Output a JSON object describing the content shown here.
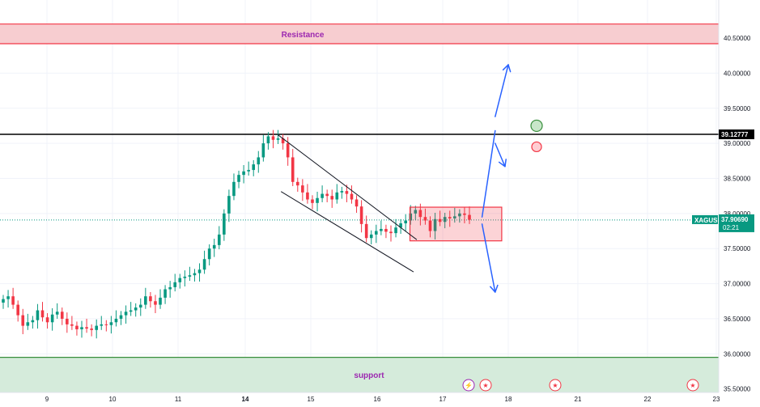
{
  "chart_data": {
    "type": "candlestick",
    "symbol": "XAGUSD",
    "y_ticks": [
      "40.50000",
      "40.00000",
      "39.50000",
      "39.00000",
      "38.50000",
      "38.00000",
      "37.50000",
      "37.00000",
      "36.50000",
      "36.00000",
      "35.50000"
    ],
    "y_tick_values": [
      40.5,
      40.0,
      39.5,
      39.0,
      38.5,
      38.0,
      37.5,
      37.0,
      36.5,
      36.0,
      35.5
    ],
    "x_ticks": [
      {
        "label": "9",
        "bold": false
      },
      {
        "label": "10",
        "bold": false
      },
      {
        "label": "11",
        "bold": false
      },
      {
        "label": "14",
        "bold": true
      },
      {
        "label": "15",
        "bold": false
      },
      {
        "label": "16",
        "bold": false
      },
      {
        "label": "17",
        "bold": false
      },
      {
        "label": "18",
        "bold": false
      },
      {
        "label": "21",
        "bold": false
      },
      {
        "label": "22",
        "bold": false
      },
      {
        "label": "23",
        "bold": false
      }
    ],
    "ylim": [
      35.45,
      40.95
    ],
    "resistance_zone": {
      "label": "Resistance",
      "low": 40.42,
      "high": 40.7
    },
    "support_zone": {
      "label": "support",
      "low": 35.4,
      "high": 35.95
    },
    "key_level": {
      "label": "39.12777",
      "value": 39.12777
    },
    "last_price": {
      "symbol": "XAGUSD",
      "price": "37.90690",
      "countdown": "02:21",
      "value": 37.9069
    },
    "consolidation_box": {
      "low": 37.61,
      "high": 38.09,
      "x_start": "16.5",
      "x_end": "17.9"
    },
    "closes": [
      36.78,
      36.82,
      36.7,
      36.55,
      36.4,
      36.45,
      36.48,
      36.62,
      36.52,
      36.45,
      36.56,
      36.6,
      36.5,
      36.42,
      36.4,
      36.35,
      36.38,
      36.36,
      36.34,
      36.4,
      36.42,
      36.41,
      36.45,
      36.5,
      36.55,
      36.6,
      36.62,
      36.66,
      36.7,
      36.82,
      36.75,
      36.7,
      36.8,
      36.92,
      36.95,
      37.02,
      37.08,
      37.1,
      37.12,
      37.15,
      37.2,
      37.35,
      37.5,
      37.55,
      37.7,
      38.0,
      38.25,
      38.45,
      38.55,
      38.6,
      38.62,
      38.7,
      38.8,
      39.0,
      39.1,
      39.05,
      39.07,
      39.0,
      38.8,
      38.45,
      38.4,
      38.3,
      38.2,
      38.15,
      38.22,
      38.28,
      38.25,
      38.2,
      38.3,
      38.32,
      38.28,
      38.2,
      38.1,
      37.85,
      37.65,
      37.7,
      37.75,
      37.78,
      37.74,
      37.72,
      37.8,
      37.86,
      37.9,
      38.0,
      38.05,
      37.95,
      37.9,
      37.75,
      37.92,
      37.88,
      37.95,
      37.93,
      37.96,
      38.0,
      37.98,
      37.91
    ],
    "wedge_upper": [
      {
        "x": "14.5",
        "y": 39.12
      },
      {
        "x": "16.6",
        "y": 37.63
      }
    ],
    "wedge_lower": [
      {
        "x": "14.55",
        "y": 38.31
      },
      {
        "x": "16.55",
        "y": 37.17
      }
    ],
    "projection_up": [
      {
        "x": "17.6",
        "y": 37.95
      },
      {
        "x": "17.8",
        "y": 39.18
      }
    ],
    "projection_up_2": [
      {
        "x": "17.8",
        "y": 39.38
      },
      {
        "x": "18.0",
        "y": 40.12
      }
    ],
    "projection_pullback": [
      {
        "x": "17.8",
        "y": 39.0
      },
      {
        "x": "17.95",
        "y": 38.67
      }
    ],
    "projection_down": [
      {
        "x": "17.6",
        "y": 37.85
      },
      {
        "x": "17.8",
        "y": 36.88
      }
    ],
    "signal_up": {
      "value": 39.25
    },
    "signal_down": {
      "value": 38.95
    },
    "colors": {
      "up": "#089981",
      "down": "#f23645",
      "resistance_fill": "#f7cdd0",
      "resistance_line": "#f23645",
      "support_fill": "#d5ebdb",
      "support_line": "#388e3c",
      "arrow": "#2962ff",
      "grid": "#f0f3fa",
      "label_bg": "#089981",
      "text": "#131722"
    }
  }
}
